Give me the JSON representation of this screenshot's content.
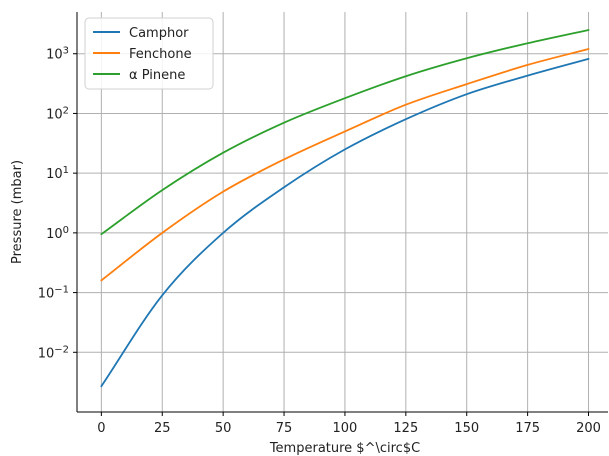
{
  "chart_data": {
    "type": "line",
    "title": "",
    "xlabel": "Temperature $^\\circ$C",
    "ylabel": "Pressure (mbar)",
    "xlim": [
      -10,
      208
    ],
    "ylim": [
      0.001,
      5000
    ],
    "yscale": "log",
    "grid": true,
    "legend_position": "top-left",
    "x_ticks": [
      0,
      25,
      50,
      75,
      100,
      125,
      150,
      175,
      200
    ],
    "y_ticks": [
      {
        "value": 0.01,
        "base": "10",
        "exp": "−2"
      },
      {
        "value": 0.1,
        "base": "10",
        "exp": "−1"
      },
      {
        "value": 1,
        "base": "10",
        "exp": "0"
      },
      {
        "value": 10,
        "base": "10",
        "exp": "1"
      },
      {
        "value": 100,
        "base": "10",
        "exp": "2"
      },
      {
        "value": 1000,
        "base": "10",
        "exp": "3"
      }
    ],
    "x": [
      0,
      25,
      50,
      75,
      100,
      125,
      150,
      175,
      200
    ],
    "series": [
      {
        "name": "Camphor",
        "color": "#1f77b4",
        "values": [
          0.0027,
          0.09,
          1.0,
          5.8,
          25,
          80,
          210,
          430,
          820
        ]
      },
      {
        "name": "Fenchone",
        "color": "#ff7f0e",
        "values": [
          0.16,
          1.0,
          4.9,
          17,
          50,
          140,
          310,
          650,
          1200
        ]
      },
      {
        "name": "α Pinene",
        "color": "#2ca02c",
        "values": [
          0.95,
          5.2,
          22,
          70,
          180,
          420,
          840,
          1500,
          2500
        ]
      }
    ]
  }
}
